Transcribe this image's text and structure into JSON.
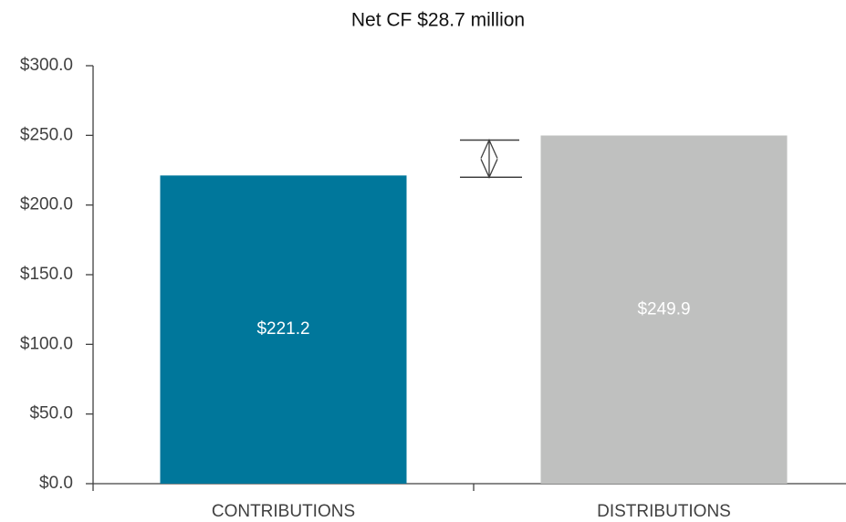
{
  "chart_data": {
    "type": "bar",
    "title": "Net CF $28.7 million",
    "categories": [
      "CONTRIBUTIONS",
      "DISTRIBUTIONS"
    ],
    "values": [
      221.2,
      249.9
    ],
    "value_labels": [
      "$221.2",
      "$249.9"
    ],
    "colors": [
      "#00779b",
      "#bfc0bf"
    ],
    "ylim": [
      0,
      300
    ],
    "yticks": [
      {
        "value": 0,
        "label": "$0.0"
      },
      {
        "value": 50,
        "label": "$50.0"
      },
      {
        "value": 100,
        "label": "$100.0"
      },
      {
        "value": 150,
        "label": "$150.0"
      },
      {
        "value": 200,
        "label": "$200.0"
      },
      {
        "value": 250,
        "label": "$250.0"
      },
      {
        "value": 300,
        "label": "$300.0"
      }
    ],
    "grid": false
  }
}
